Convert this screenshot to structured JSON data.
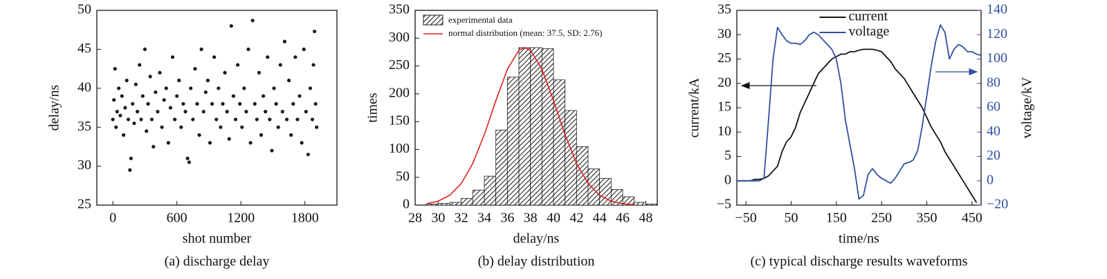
{
  "chart_data": [
    {
      "type": "scatter",
      "caption": "(a) discharge delay",
      "xlabel": "shot number",
      "ylabel": "delay/ns",
      "x": [
        0,
        10,
        20,
        30,
        40,
        55,
        70,
        85,
        100,
        115,
        130,
        145,
        160,
        170,
        185,
        200,
        215,
        230,
        250,
        265,
        280,
        300,
        315,
        330,
        350,
        365,
        380,
        400,
        420,
        440,
        460,
        480,
        500,
        520,
        540,
        560,
        580,
        600,
        620,
        640,
        660,
        680,
        700,
        715,
        730,
        750,
        770,
        790,
        810,
        830,
        850,
        870,
        890,
        910,
        930,
        950,
        970,
        990,
        1010,
        1030,
        1050,
        1070,
        1090,
        1110,
        1130,
        1150,
        1170,
        1190,
        1210,
        1230,
        1250,
        1270,
        1290,
        1310,
        1330,
        1350,
        1370,
        1390,
        1410,
        1430,
        1450,
        1470,
        1490,
        1510,
        1530,
        1550,
        1570,
        1590,
        1610,
        1630,
        1650,
        1670,
        1690,
        1710,
        1730,
        1750,
        1770,
        1790,
        1810,
        1830,
        1850,
        1870,
        1880,
        1890,
        1900,
        1910
      ],
      "values": [
        36,
        38.5,
        42.5,
        35,
        37,
        40,
        36.5,
        39,
        34,
        37.5,
        41,
        36,
        29.5,
        31,
        38,
        35.5,
        40.5,
        37,
        43,
        36,
        39,
        45,
        34.5,
        38,
        41.5,
        36,
        32.5,
        39.5,
        37,
        42,
        35,
        38.5,
        40,
        33,
        37.5,
        44,
        36,
        39,
        41,
        35,
        38,
        37,
        31,
        30.5,
        40,
        36,
        42.5,
        38,
        34,
        45,
        37,
        39.5,
        41,
        33,
        38,
        44,
        36,
        40,
        35,
        38,
        42,
        37,
        33.5,
        48,
        39,
        36,
        43,
        38,
        35,
        40,
        37,
        45,
        33,
        48.7,
        38,
        36,
        42,
        34,
        39,
        37,
        44,
        36,
        32,
        40,
        38,
        35,
        43,
        37,
        46,
        36,
        41,
        34,
        38,
        44,
        36,
        39,
        33,
        45,
        37,
        31.5,
        40,
        36,
        43,
        47.3,
        38,
        35
      ],
      "color": "#1a1a1a",
      "xlim": [
        -150,
        2100
      ],
      "xticks": [
        0,
        600,
        1200,
        1800
      ],
      "ylim": [
        25,
        50
      ],
      "yticks": [
        25,
        30,
        35,
        40,
        45,
        50
      ]
    },
    {
      "type": "histogram",
      "caption": "(b) delay distribution",
      "xlabel": "delay/ns",
      "ylabel": "times",
      "bins": [
        29,
        30,
        31,
        32,
        33,
        34,
        35,
        36,
        37,
        38,
        39,
        40,
        41,
        42,
        43,
        44,
        45,
        46,
        47,
        48,
        49
      ],
      "series": [
        {
          "name": "experimental data",
          "color": "#1a1a1a",
          "values": [
            2,
            3,
            5,
            12,
            27,
            52,
            135,
            230,
            283,
            283,
            281,
            225,
            170,
            105,
            65,
            48,
            28,
            15,
            5,
            2
          ]
        }
      ],
      "curve": {
        "name": "normal distribution (mean: 37.5, SD: 2.76)",
        "color": "#e02020",
        "x": [
          29,
          30,
          31,
          32,
          33,
          34,
          35,
          36,
          37,
          37.5,
          38,
          39,
          40,
          41,
          42,
          43,
          44,
          45,
          46,
          47
        ],
        "values": [
          2.5,
          7.1,
          17.7,
          38.8,
          74.9,
          126.6,
          187.8,
          244.1,
          278.4,
          283,
          278.4,
          244.1,
          187.8,
          126.6,
          74.9,
          38.8,
          17.7,
          7.1,
          2.5,
          0.7
        ]
      },
      "xlim": [
        28,
        49
      ],
      "xticks": [
        28,
        30,
        32,
        34,
        36,
        38,
        40,
        42,
        44,
        46,
        48
      ],
      "ylim": [
        0,
        350
      ],
      "yticks": [
        0,
        50,
        100,
        150,
        200,
        250,
        300,
        350
      ]
    },
    {
      "type": "line",
      "caption": "(c) typical discharge results waveforms",
      "xlabel": "time/ns",
      "ylabel": "current/kA",
      "y2label": "voltage/kV",
      "legend": "upper center",
      "x": [
        -70,
        -60,
        -50,
        -40,
        -30,
        -20,
        -10,
        0,
        10,
        20,
        30,
        40,
        50,
        60,
        70,
        80,
        90,
        100,
        110,
        120,
        130,
        140,
        150,
        160,
        170,
        180,
        190,
        200,
        210,
        220,
        230,
        240,
        250,
        260,
        270,
        280,
        290,
        300,
        310,
        320,
        330,
        340,
        350,
        360,
        370,
        380,
        390,
        400,
        410,
        420,
        430,
        440,
        450,
        460,
        470
      ],
      "series": [
        {
          "name": "current",
          "color": "#111111",
          "values": [
            0,
            0,
            0,
            0,
            0.3,
            0.3,
            0.5,
            1,
            2,
            3,
            6,
            8,
            9,
            11,
            14,
            16,
            18,
            20,
            22,
            23,
            24,
            25,
            25.5,
            26,
            26,
            26.5,
            26.5,
            26.8,
            27,
            27,
            27,
            26.8,
            26.5,
            25.5,
            24.5,
            23,
            22,
            21,
            19.5,
            18,
            16.5,
            15,
            13,
            11,
            9.5,
            8,
            6,
            4.5,
            3,
            1.5,
            0,
            -1.5,
            -3,
            -4.5,
            null
          ]
        },
        {
          "name": "voltage",
          "color": "#2f4f9f",
          "axis": "y2",
          "values": [
            0,
            0,
            0,
            0,
            0,
            0,
            2,
            50,
            100,
            126,
            120,
            115,
            113,
            113,
            112,
            115,
            120,
            122,
            120,
            116,
            112,
            108,
            100,
            80,
            50,
            30,
            10,
            -15,
            -12,
            5,
            10,
            5,
            2,
            0,
            -2,
            2,
            8,
            14,
            15,
            17,
            25,
            45,
            70,
            95,
            115,
            128,
            122,
            100,
            108,
            112,
            110,
            106,
            106,
            104,
            103
          ]
        }
      ],
      "xlim": [
        -70,
        470
      ],
      "xticks": [
        {
          "value": -50,
          "label": "−50"
        },
        50,
        150,
        250,
        350,
        450
      ],
      "ylim": [
        -5,
        35
      ],
      "yticks": [
        {
          "value": -5,
          "label": "−5"
        },
        0,
        5,
        10,
        15,
        20,
        25,
        30,
        35
      ],
      "y2lim": [
        -20,
        140
      ],
      "y2ticks": [
        {
          "value": -20,
          "label": "−20"
        },
        0,
        20,
        40,
        60,
        80,
        100,
        120,
        140
      ]
    }
  ]
}
